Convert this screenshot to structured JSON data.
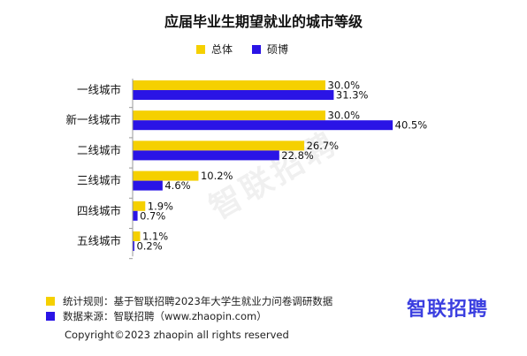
{
  "chart_data": {
    "type": "bar",
    "orientation": "horizontal",
    "title": "应届毕业生期望就业的城市等级",
    "categories": [
      "一线城市",
      "新一线城市",
      "二线城市",
      "三线城市",
      "四线城市",
      "五线城市"
    ],
    "series": [
      {
        "name": "总体",
        "color": "#f5d000",
        "values": [
          30.0,
          30.0,
          26.7,
          10.2,
          1.9,
          1.1
        ],
        "labels": [
          "30.0%",
          "30.0%",
          "26.7%",
          "10.2%",
          "1.9%",
          "1.1%"
        ]
      },
      {
        "name": "硕博",
        "color": "#2a14e6",
        "values": [
          31.3,
          40.5,
          22.8,
          4.6,
          0.7,
          0.2
        ],
        "labels": [
          "31.3%",
          "40.5%",
          "22.8%",
          "4.6%",
          "0.7%",
          "0.2%"
        ]
      }
    ],
    "xlim": [
      0,
      50
    ],
    "legend": "top-center",
    "grid": false
  },
  "watermark": "智联招聘",
  "footer": {
    "method_note": "统计规则：基于智联招聘2023年大学生就业力问卷调研数据",
    "source_note": "数据来源：智联招聘（www.zhaopin.com）",
    "copyright": "Copyright©2023 zhaopin all rights reserved",
    "logo_text": "智联招聘",
    "note_colors": [
      "#f5d000",
      "#2a14e6"
    ]
  }
}
